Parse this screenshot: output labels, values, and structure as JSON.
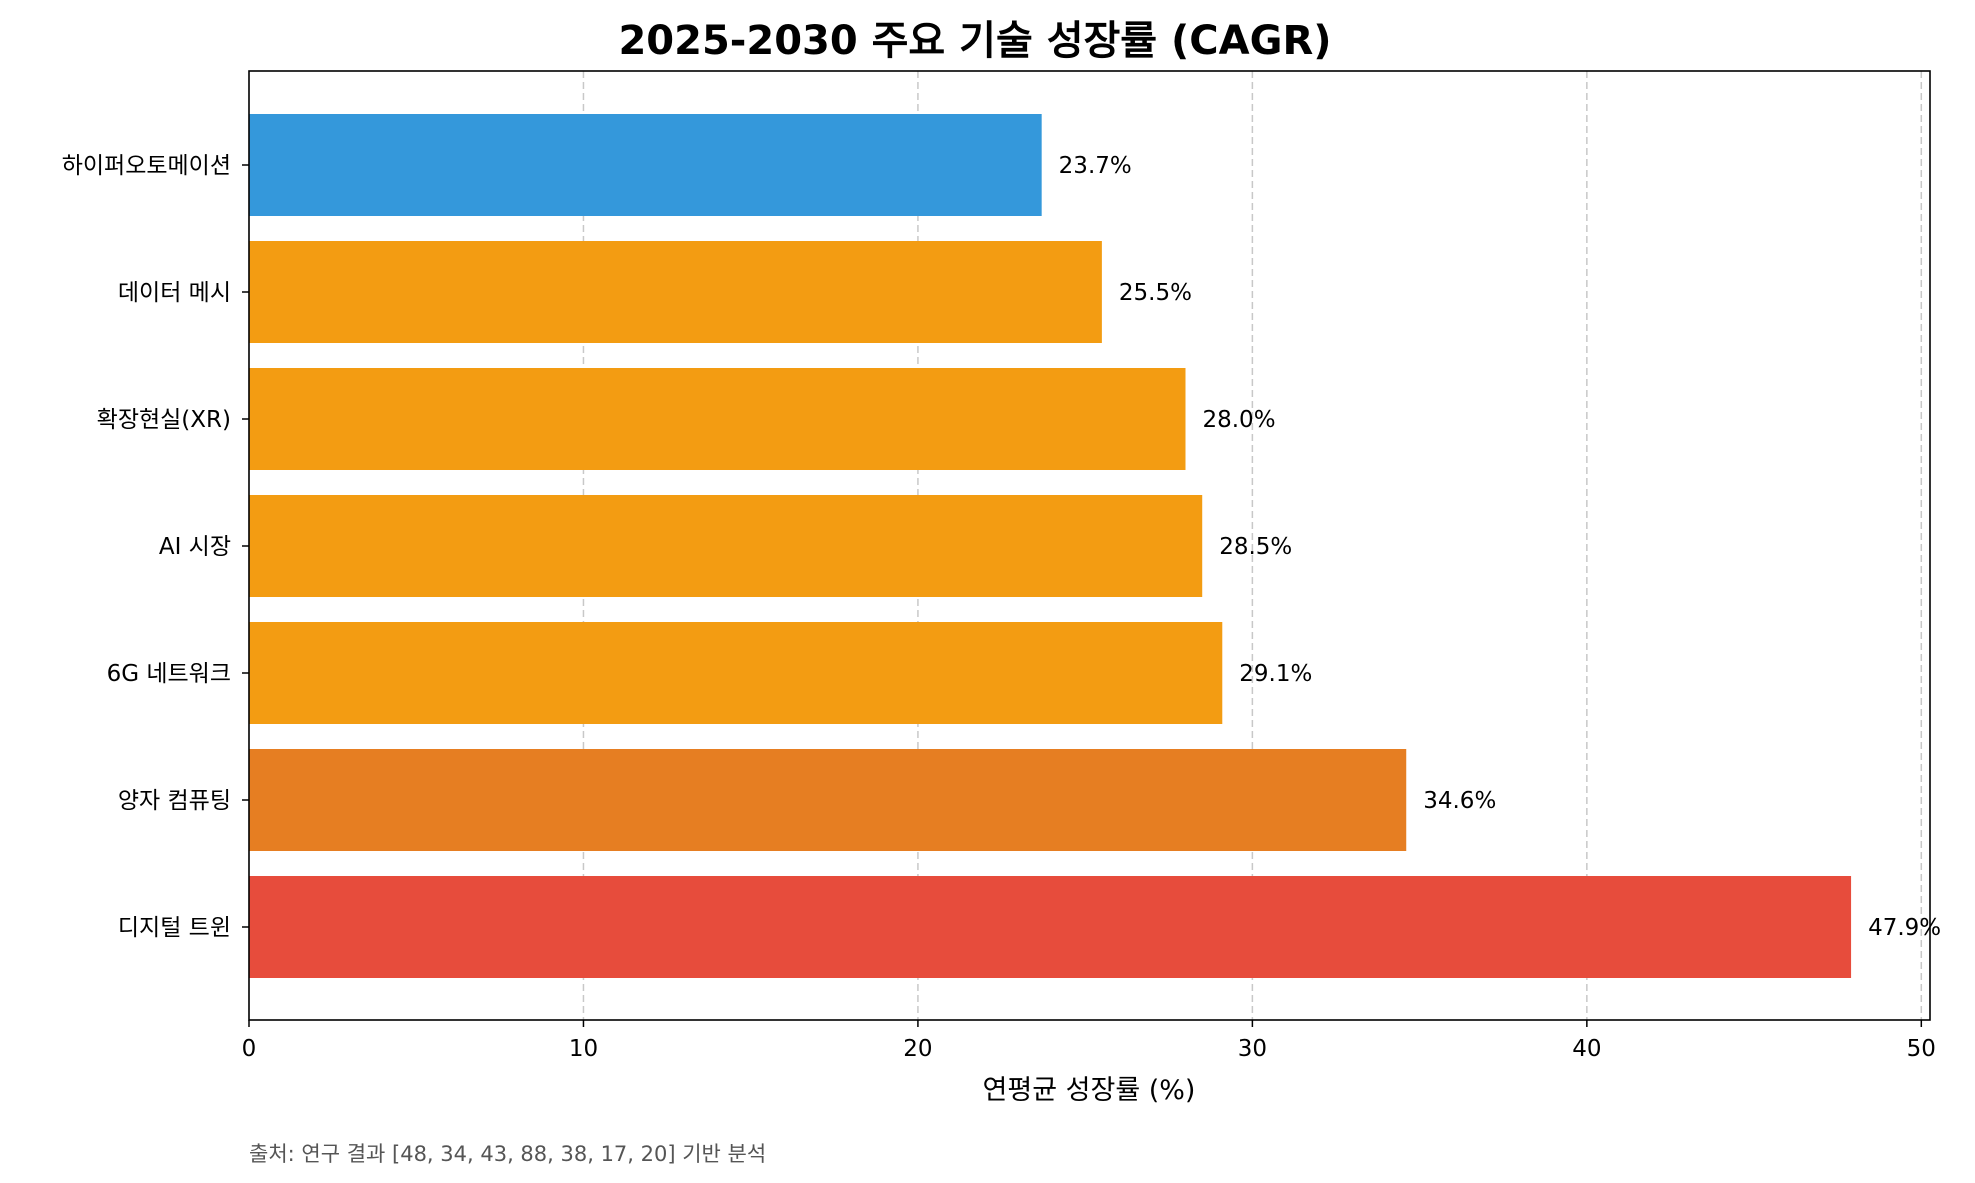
{
  "chart_data": {
    "type": "bar",
    "orientation": "horizontal",
    "title": "2025-2030 주요 기술 성장률 (CAGR)",
    "xlabel": "연평균 성장률 (%)",
    "ylabel": "",
    "xlim": [
      0,
      50
    ],
    "xticks": [
      0,
      10,
      20,
      30,
      40,
      50
    ],
    "grid": "x-dashed",
    "categories": [
      "하이퍼오토메이션",
      "데이터 메시",
      "확장현실(XR)",
      "AI 시장",
      "6G 네트워크",
      "양자 컴퓨팅",
      "디지털 트윈"
    ],
    "values": [
      23.7,
      25.5,
      28.0,
      28.5,
      29.1,
      34.6,
      47.9
    ],
    "value_labels": [
      "23.7%",
      "25.5%",
      "28.0%",
      "28.5%",
      "29.1%",
      "34.6%",
      "47.9%"
    ],
    "colors": [
      "#3498db",
      "#f39c12",
      "#f39c12",
      "#f39c12",
      "#f39c12",
      "#e67e22",
      "#e74c3c"
    ],
    "source_note": "출처: 연구 결과 [48, 34, 43, 88, 38, 17, 20] 기반 분석"
  }
}
